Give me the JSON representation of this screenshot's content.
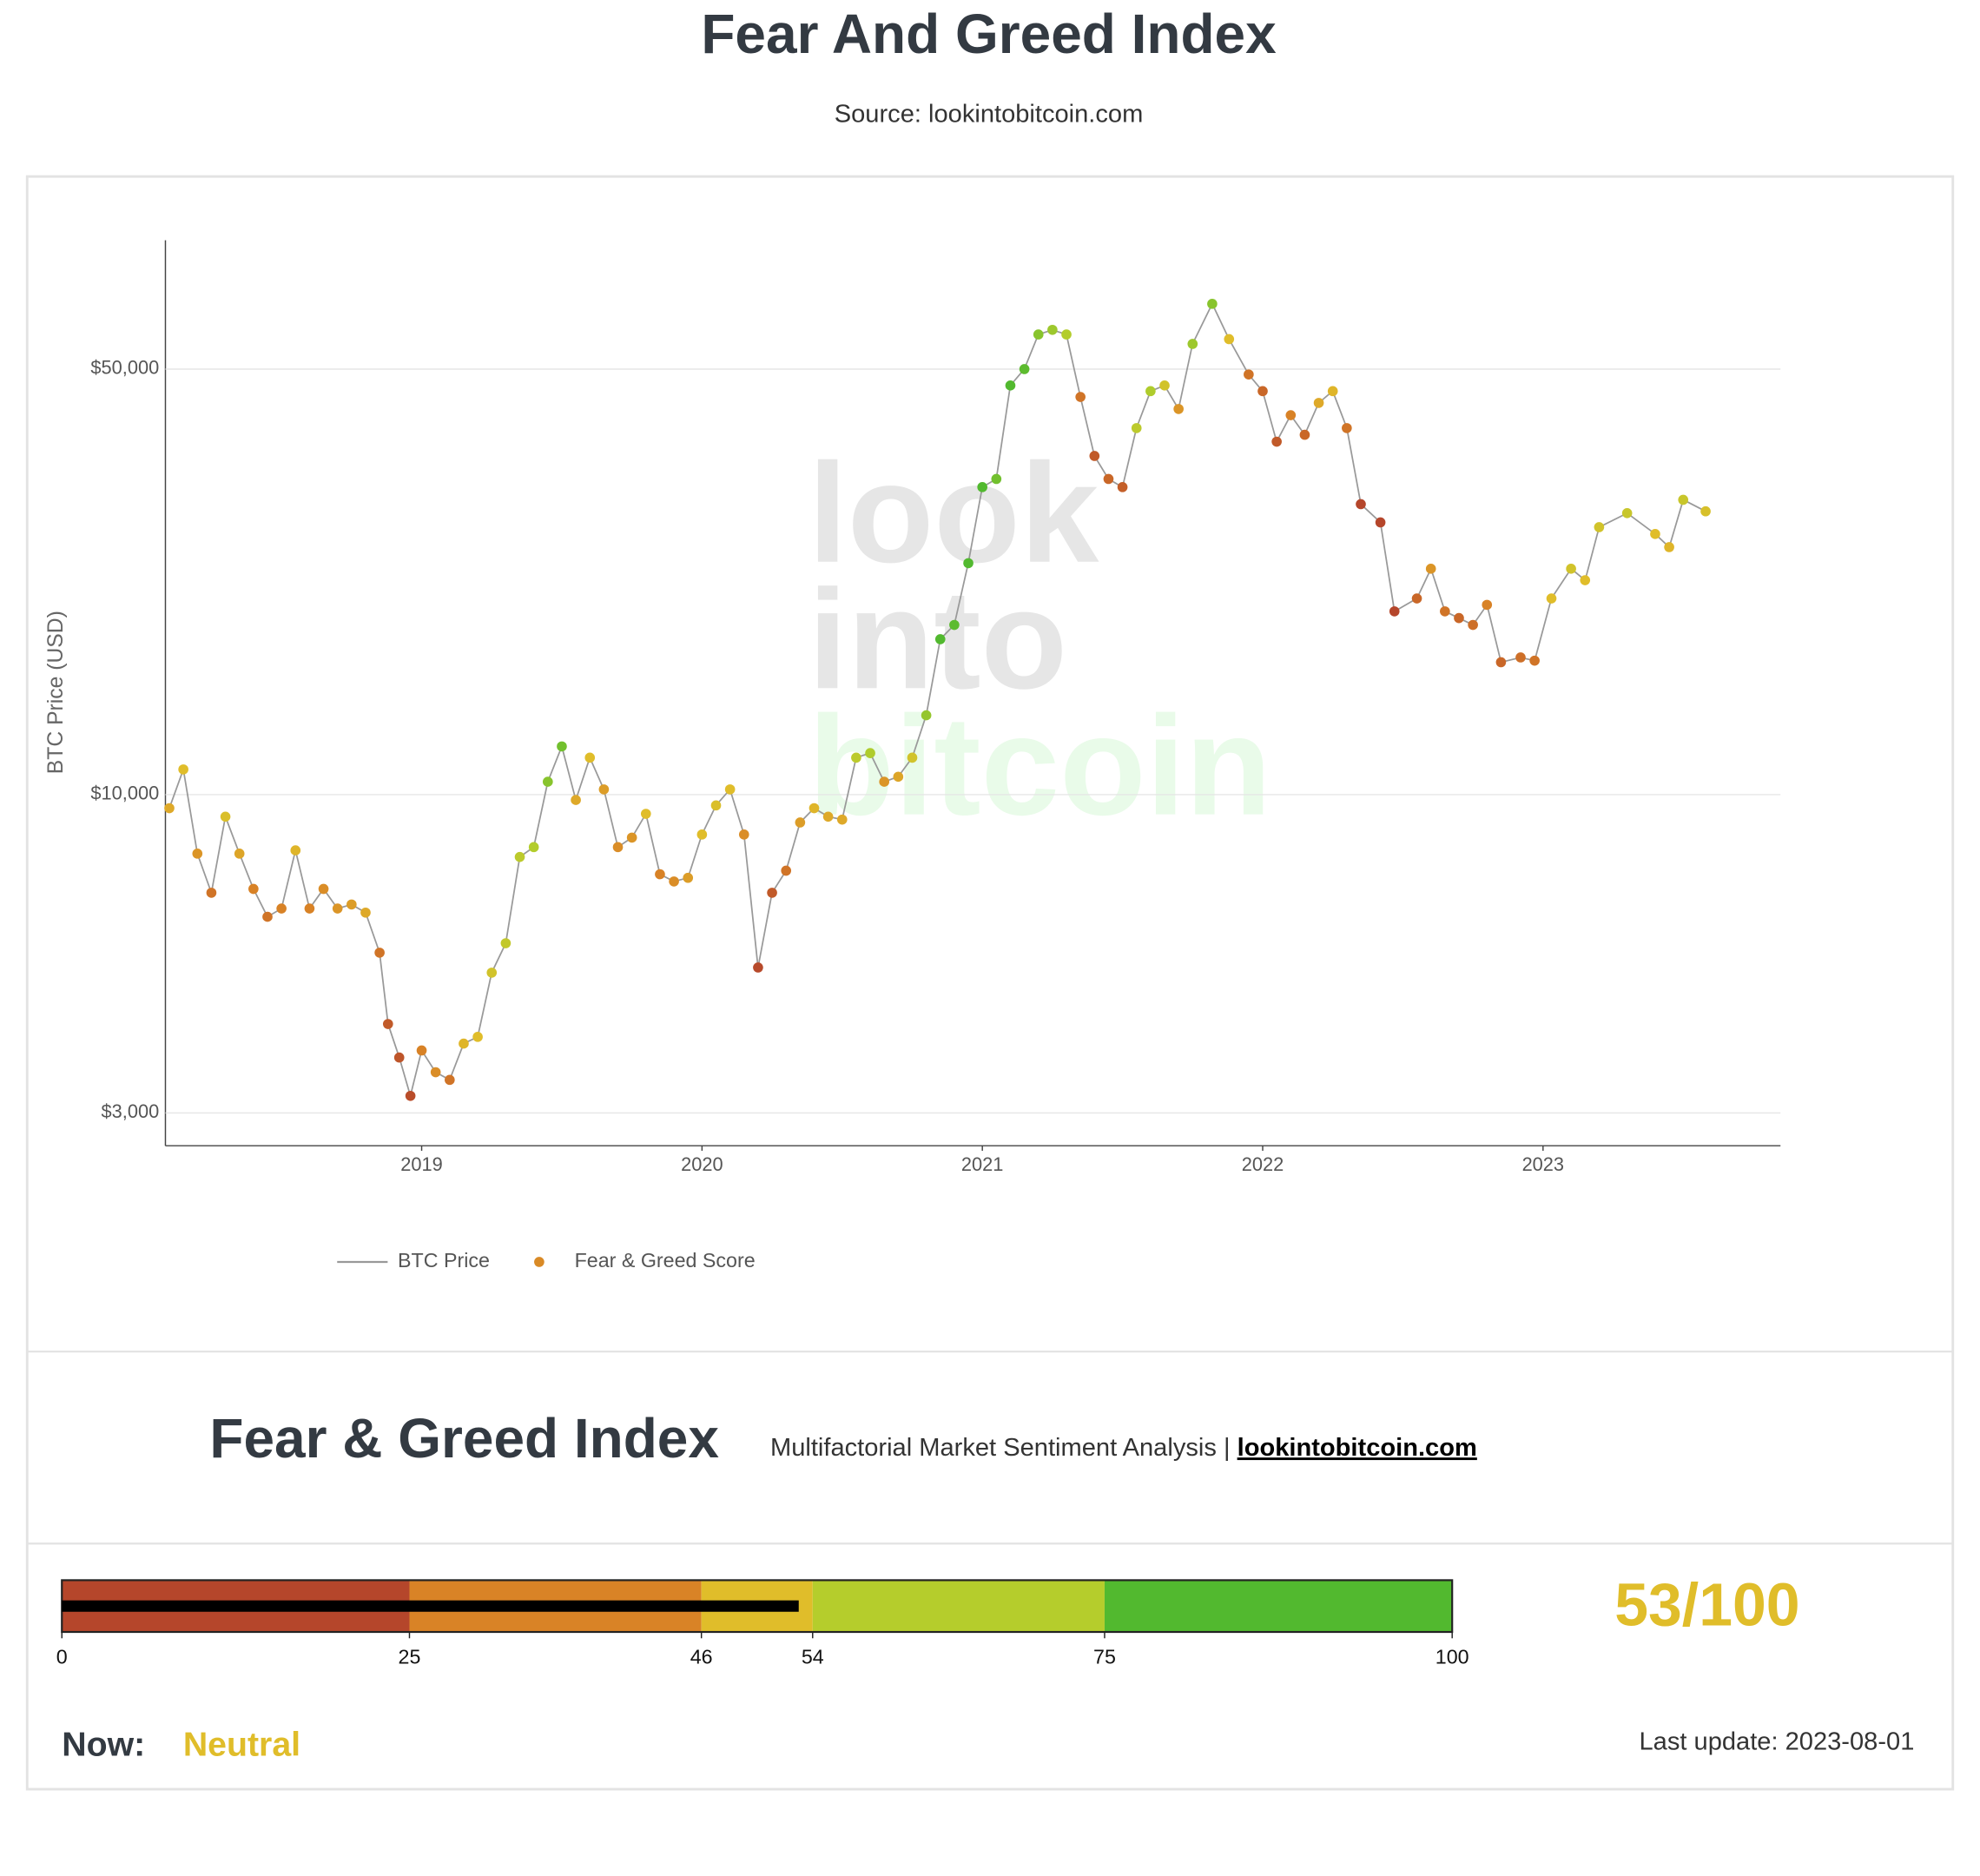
{
  "header": {
    "title": "Fear And Greed Index",
    "subtitle": "Source: lookintobitcoin.com"
  },
  "chart_data": {
    "type": "scatter-line",
    "ylabel": "BTC Price (USD)",
    "watermark": [
      "look",
      "into",
      "bitcoin"
    ],
    "log_y": true,
    "grid": true,
    "xlim": [
      2018.086,
      2023.847
    ],
    "xticks": [
      2019,
      2020,
      2021,
      2022,
      2023
    ],
    "ylim": [
      2650,
      81400
    ],
    "yticks": [
      {
        "value": 3000,
        "label": "$3,000"
      },
      {
        "value": 10000,
        "label": "$10,000"
      },
      {
        "value": 50000,
        "label": "$50,000"
      }
    ],
    "x": [
      2018.1,
      2018.15,
      2018.2,
      2018.25,
      2018.3,
      2018.35,
      2018.4,
      2018.45,
      2018.5,
      2018.55,
      2018.6,
      2018.65,
      2018.7,
      2018.75,
      2018.8,
      2018.85,
      2018.88,
      2018.92,
      2018.96,
      2019.0,
      2019.05,
      2019.1,
      2019.15,
      2019.2,
      2019.25,
      2019.3,
      2019.35,
      2019.4,
      2019.45,
      2019.5,
      2019.55,
      2019.6,
      2019.65,
      2019.7,
      2019.75,
      2019.8,
      2019.85,
      2019.9,
      2019.95,
      2020.0,
      2020.05,
      2020.1,
      2020.15,
      2020.2,
      2020.25,
      2020.3,
      2020.35,
      2020.4,
      2020.45,
      2020.5,
      2020.55,
      2020.6,
      2020.65,
      2020.7,
      2020.75,
      2020.8,
      2020.85,
      2020.9,
      2020.95,
      2021.0,
      2021.05,
      2021.1,
      2021.15,
      2021.2,
      2021.25,
      2021.3,
      2021.35,
      2021.4,
      2021.45,
      2021.5,
      2021.55,
      2021.6,
      2021.65,
      2021.7,
      2021.75,
      2021.82,
      2021.88,
      2021.95,
      2022.0,
      2022.05,
      2022.1,
      2022.15,
      2022.2,
      2022.25,
      2022.3,
      2022.35,
      2022.42,
      2022.47,
      2022.55,
      2022.6,
      2022.65,
      2022.7,
      2022.75,
      2022.8,
      2022.85,
      2022.92,
      2022.97,
      2023.03,
      2023.1,
      2023.15,
      2023.2,
      2023.3,
      2023.4,
      2023.45,
      2023.5,
      2023.58
    ],
    "series": [
      {
        "name": "BTC Price",
        "color": "#999999",
        "values": [
          9500,
          11000,
          8000,
          6900,
          9200,
          8000,
          7000,
          6300,
          6500,
          8100,
          6500,
          7000,
          6500,
          6600,
          6400,
          5500,
          4200,
          3700,
          3200,
          3800,
          3500,
          3400,
          3900,
          4000,
          5100,
          5700,
          7900,
          8200,
          10500,
          12000,
          9800,
          11500,
          10200,
          8200,
          8500,
          9300,
          7400,
          7200,
          7300,
          8600,
          9600,
          10200,
          8600,
          5200,
          6900,
          7500,
          9000,
          9500,
          9200,
          9100,
          11500,
          11700,
          10500,
          10700,
          11500,
          13500,
          18000,
          19000,
          24000,
          32000,
          33000,
          47000,
          50000,
          57000,
          58000,
          57000,
          45000,
          36000,
          33000,
          32000,
          40000,
          46000,
          47000,
          43000,
          55000,
          64000,
          56000,
          49000,
          46000,
          38000,
          42000,
          39000,
          44000,
          46000,
          40000,
          30000,
          28000,
          20000,
          21000,
          23500,
          20000,
          19500,
          19000,
          20500,
          16500,
          16800,
          16600,
          21000,
          23500,
          22500,
          27500,
          29000,
          26800,
          25500,
          30500,
          29200
        ]
      },
      {
        "name": "Fear & Greed Score",
        "color": "#d98a26",
        "values": [
          45,
          50,
          40,
          30,
          52,
          44,
          35,
          30,
          35,
          48,
          35,
          38,
          40,
          42,
          45,
          30,
          20,
          18,
          15,
          35,
          38,
          30,
          48,
          50,
          55,
          60,
          62,
          65,
          75,
          80,
          45,
          50,
          42,
          38,
          40,
          50,
          35,
          38,
          42,
          50,
          52,
          50,
          38,
          14,
          20,
          30,
          42,
          48,
          45,
          45,
          62,
          66,
          40,
          44,
          55,
          72,
          88,
          85,
          88,
          90,
          80,
          92,
          85,
          75,
          70,
          65,
          30,
          20,
          25,
          22,
          62,
          66,
          55,
          40,
          70,
          75,
          50,
          30,
          25,
          20,
          35,
          25,
          45,
          48,
          30,
          12,
          10,
          8,
          25,
          40,
          30,
          25,
          28,
          35,
          25,
          28,
          30,
          50,
          55,
          50,
          55,
          58,
          50,
          48,
          58,
          53
        ]
      }
    ]
  },
  "panel": {
    "title": "Fear & Greed Index",
    "subtitle": "Multifactorial Market Sentiment Analysis | ",
    "link": "lookintobitcoin.com"
  },
  "gauge": {
    "value": 53,
    "value_label": "53/100",
    "ticks": [
      0,
      25,
      46,
      54,
      75,
      100
    ],
    "band_colors": [
      "#b5462b",
      "#d98326",
      "#e0bd2a",
      "#b5cd2c",
      "#52b92f"
    ],
    "bar_color": "#000000",
    "now_label": "Now:",
    "now_value": "Neutral",
    "last_update": "Last update: 2023-08-01"
  }
}
